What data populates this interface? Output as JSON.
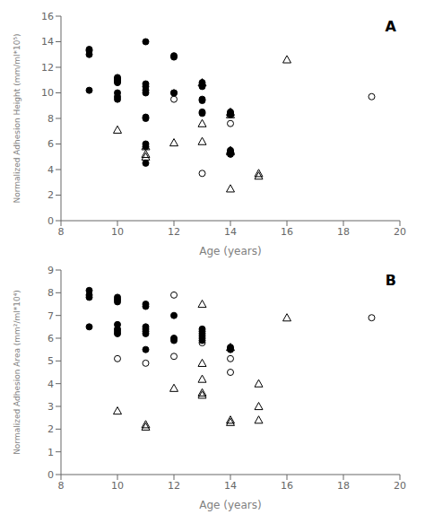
{
  "chart_data": [
    {
      "type": "scatter",
      "title": "A",
      "xlabel": "Age (years)",
      "ylabel": "Normalized Adhesion Height (mm/ml*10⁵)",
      "xlim": [
        8,
        20
      ],
      "ylim": [
        0,
        16
      ],
      "xticks": [
        8,
        10,
        12,
        14,
        16,
        18,
        20
      ],
      "yticks": [
        0,
        2,
        4,
        6,
        8,
        10,
        12,
        14,
        16
      ],
      "series": [
        {
          "marker": "filled_circle",
          "color": "black",
          "values": [
            [
              9,
              10.2
            ],
            [
              9,
              13.0
            ],
            [
              9,
              13.3
            ],
            [
              9,
              13.4
            ],
            [
              10,
              9.5
            ],
            [
              10,
              9.7
            ],
            [
              10,
              10.0
            ],
            [
              10,
              10.8
            ],
            [
              10,
              10.9
            ],
            [
              10,
              11.0
            ],
            [
              10,
              11.1
            ],
            [
              10,
              11.2
            ],
            [
              11,
              14.0
            ],
            [
              11,
              10.0
            ],
            [
              11,
              10.2
            ],
            [
              11,
              10.5
            ],
            [
              11,
              10.7
            ],
            [
              11,
              8.0
            ],
            [
              11,
              8.1
            ],
            [
              11,
              6.0
            ],
            [
              11,
              5.8
            ],
            [
              11,
              4.5
            ],
            [
              12,
              10.0
            ],
            [
              12,
              12.8
            ],
            [
              12,
              12.9
            ],
            [
              13,
              10.8
            ],
            [
              13,
              10.5
            ],
            [
              13,
              9.5
            ],
            [
              13,
              9.4
            ],
            [
              13,
              8.5
            ],
            [
              13,
              8.4
            ],
            [
              14,
              8.5
            ],
            [
              14,
              8.3
            ],
            [
              14,
              5.5
            ],
            [
              14,
              5.4
            ],
            [
              14,
              5.3
            ],
            [
              14,
              5.2
            ]
          ]
        },
        {
          "marker": "open_circle",
          "color": "black",
          "values": [
            [
              12,
              9.5
            ],
            [
              12,
              10.0
            ],
            [
              13,
              3.7
            ],
            [
              14,
              8.4
            ],
            [
              14,
              7.6
            ],
            [
              19,
              9.7
            ]
          ]
        },
        {
          "marker": "open_triangle",
          "color": "black",
          "values": [
            [
              10,
              7.1
            ],
            [
              11,
              5.8
            ],
            [
              11,
              5.2
            ],
            [
              11,
              5.0
            ],
            [
              12,
              6.1
            ],
            [
              13,
              10.8
            ],
            [
              13,
              7.6
            ],
            [
              13,
              6.2
            ],
            [
              14,
              8.5
            ],
            [
              14,
              8.3
            ],
            [
              14,
              5.5
            ],
            [
              14,
              5.4
            ],
            [
              14,
              2.5
            ],
            [
              15,
              3.7
            ],
            [
              15,
              3.5
            ],
            [
              16,
              12.6
            ]
          ]
        }
      ]
    },
    {
      "type": "scatter",
      "title": "B",
      "xlabel": "Age (years)",
      "ylabel": "Normalized Adhesion Area (mm²/ml*10⁴)",
      "xlim": [
        8,
        20
      ],
      "ylim": [
        0,
        9
      ],
      "xticks": [
        8,
        10,
        12,
        14,
        16,
        18,
        20
      ],
      "yticks": [
        0,
        1,
        2,
        3,
        4,
        5,
        6,
        7,
        8,
        9
      ],
      "series": [
        {
          "marker": "filled_circle",
          "color": "black",
          "values": [
            [
              9,
              6.5
            ],
            [
              9,
              7.8
            ],
            [
              9,
              7.9
            ],
            [
              9,
              8.1
            ],
            [
              10,
              6.2
            ],
            [
              10,
              6.3
            ],
            [
              10,
              6.4
            ],
            [
              10,
              6.6
            ],
            [
              10,
              7.7
            ],
            [
              10,
              7.8
            ],
            [
              10,
              7.6
            ],
            [
              11,
              6.2
            ],
            [
              11,
              6.3
            ],
            [
              11,
              6.4
            ],
            [
              11,
              6.5
            ],
            [
              11,
              7.5
            ],
            [
              11,
              7.4
            ],
            [
              11,
              5.5
            ],
            [
              12,
              5.9
            ],
            [
              12,
              6.0
            ],
            [
              12,
              7.0
            ],
            [
              13,
              6.4
            ],
            [
              13,
              6.3
            ],
            [
              13,
              6.2
            ],
            [
              13,
              6.1
            ],
            [
              13,
              6.0
            ],
            [
              13,
              5.9
            ],
            [
              14,
              5.6
            ],
            [
              14,
              5.5
            ]
          ]
        },
        {
          "marker": "open_circle",
          "color": "black",
          "values": [
            [
              10,
              5.1
            ],
            [
              11,
              4.9
            ],
            [
              12,
              5.2
            ],
            [
              12,
              7.9
            ],
            [
              13,
              5.8
            ],
            [
              14,
              5.1
            ],
            [
              14,
              4.5
            ],
            [
              19,
              6.9
            ]
          ]
        },
        {
          "marker": "open_triangle",
          "color": "black",
          "values": [
            [
              10,
              2.8
            ],
            [
              11,
              2.1
            ],
            [
              11,
              2.2
            ],
            [
              12,
              3.8
            ],
            [
              13,
              7.5
            ],
            [
              13,
              4.9
            ],
            [
              13,
              4.2
            ],
            [
              13,
              3.6
            ],
            [
              13,
              3.5
            ],
            [
              14,
              5.6
            ],
            [
              14,
              2.4
            ],
            [
              14,
              2.3
            ],
            [
              15,
              4.0
            ],
            [
              15,
              3.0
            ],
            [
              15,
              2.4
            ],
            [
              16,
              6.9
            ]
          ]
        }
      ]
    }
  ]
}
